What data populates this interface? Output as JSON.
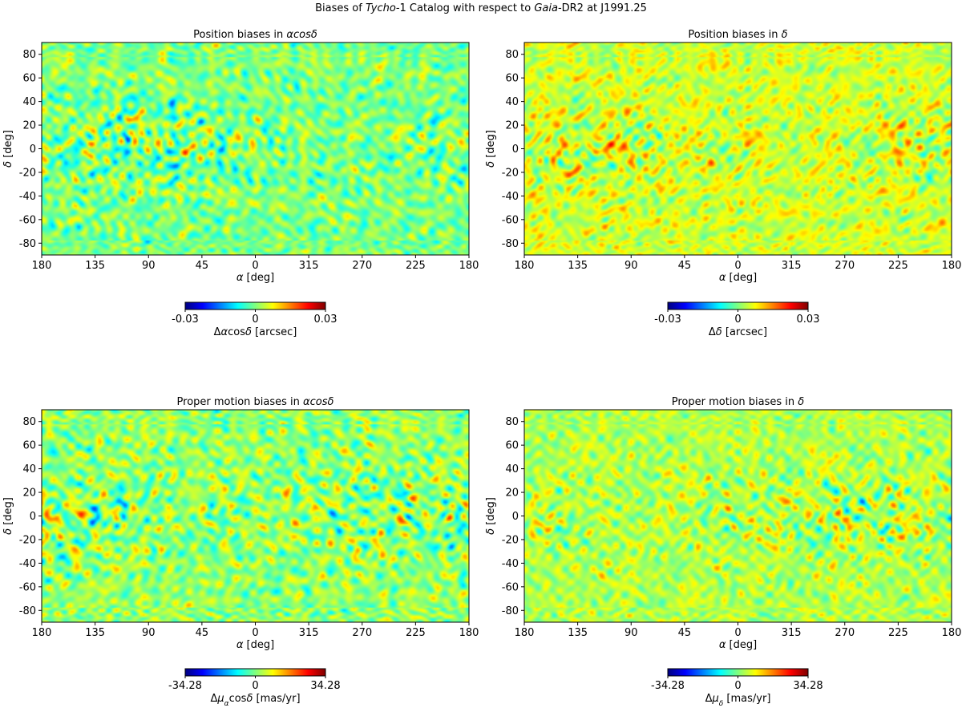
{
  "figure": {
    "title_parts": [
      {
        "t": "Biases of ",
        "i": false
      },
      {
        "t": "Tycho",
        "i": true
      },
      {
        "t": "-1 Catalog with respect to ",
        "i": false
      },
      {
        "t": "Gaia",
        "i": true
      },
      {
        "t": "-DR2 at J1991.25",
        "i": false
      }
    ]
  },
  "colormap": {
    "name": "jet",
    "stops": [
      "#00007f",
      "#0000ff",
      "#007fff",
      "#00ffff",
      "#7fff7f",
      "#ffff00",
      "#ff7f00",
      "#ff0000",
      "#7f0000"
    ]
  },
  "chart_data": [
    {
      "type": "heatmap",
      "title_parts": [
        {
          "t": "Position biases in ",
          "i": false
        },
        {
          "t": "αcosδ",
          "i": true
        }
      ],
      "xlabel_parts": [
        {
          "t": "α",
          "i": true
        },
        {
          "t": " [deg]",
          "i": false
        }
      ],
      "ylabel_parts": [
        {
          "t": "δ",
          "i": true
        },
        {
          "t": " [deg]",
          "i": false
        }
      ],
      "x_tick_labels": [
        "180",
        "135",
        "90",
        "45",
        "0",
        "315",
        "270",
        "225",
        "180"
      ],
      "y_tick_labels": [
        "80",
        "60",
        "40",
        "20",
        "0",
        "-20",
        "-40",
        "-60",
        "-80"
      ],
      "y_tick_values": [
        80,
        60,
        40,
        20,
        0,
        -20,
        -40,
        -60,
        -80
      ],
      "ylim": [
        -90,
        90
      ],
      "xlim": [
        180,
        -180
      ],
      "colorbar": {
        "vmin": -0.03,
        "vmax": 0.03,
        "tick_labels": [
          "-0.03",
          "0",
          "0.03"
        ],
        "label_parts": [
          {
            "t": "Δ",
            "i": false
          },
          {
            "t": "α",
            "i": true
          },
          {
            "t": "cos",
            "i": false
          },
          {
            "t": "δ",
            "i": true
          },
          {
            "t": " [arcsec]",
            "i": false
          }
        ]
      },
      "seed": 11,
      "warmth": 0.0,
      "spread": 0.95
    },
    {
      "type": "heatmap",
      "title_parts": [
        {
          "t": "Position biases in ",
          "i": false
        },
        {
          "t": "δ",
          "i": true
        }
      ],
      "xlabel_parts": [
        {
          "t": "α",
          "i": true
        },
        {
          "t": " [deg]",
          "i": false
        }
      ],
      "ylabel_parts": [
        {
          "t": "δ",
          "i": true
        },
        {
          "t": " [deg]",
          "i": false
        }
      ],
      "x_tick_labels": [
        "180",
        "135",
        "90",
        "45",
        "0",
        "315",
        "270",
        "225",
        "180"
      ],
      "y_tick_labels": [
        "80",
        "60",
        "40",
        "20",
        "0",
        "-20",
        "-40",
        "-60",
        "-80"
      ],
      "y_tick_values": [
        80,
        60,
        40,
        20,
        0,
        -20,
        -40,
        -60,
        -80
      ],
      "ylim": [
        -90,
        90
      ],
      "xlim": [
        180,
        -180
      ],
      "colorbar": {
        "vmin": -0.03,
        "vmax": 0.03,
        "tick_labels": [
          "-0.03",
          "0",
          "0.03"
        ],
        "label_parts": [
          {
            "t": "Δ",
            "i": false
          },
          {
            "t": "δ",
            "i": true
          },
          {
            "t": " [arcsec]",
            "i": false
          }
        ]
      },
      "seed": 23,
      "warmth": 0.08,
      "spread": 0.85
    },
    {
      "type": "heatmap",
      "title_parts": [
        {
          "t": "Proper motion biases in ",
          "i": false
        },
        {
          "t": "αcosδ",
          "i": true
        }
      ],
      "xlabel_parts": [
        {
          "t": "α",
          "i": true
        },
        {
          "t": " [deg]",
          "i": false
        }
      ],
      "ylabel_parts": [
        {
          "t": "δ",
          "i": true
        },
        {
          "t": " [deg]",
          "i": false
        }
      ],
      "x_tick_labels": [
        "180",
        "135",
        "90",
        "45",
        "0",
        "315",
        "270",
        "225",
        "180"
      ],
      "y_tick_labels": [
        "80",
        "60",
        "40",
        "20",
        "0",
        "-20",
        "-40",
        "-60",
        "-80"
      ],
      "y_tick_values": [
        80,
        60,
        40,
        20,
        0,
        -20,
        -40,
        -60,
        -80
      ],
      "ylim": [
        -90,
        90
      ],
      "xlim": [
        180,
        -180
      ],
      "colorbar": {
        "vmin": -34.28,
        "vmax": 34.28,
        "tick_labels": [
          "-34.28",
          "0",
          "34.28"
        ],
        "label_parts": [
          {
            "t": "Δ",
            "i": false
          },
          {
            "t": "μ",
            "i": true
          },
          {
            "t": "α",
            "i": true,
            "sub": true
          },
          {
            "t": "cos",
            "i": false
          },
          {
            "t": "δ",
            "i": true
          },
          {
            "t": " [mas/yr]",
            "i": false
          }
        ]
      },
      "seed": 37,
      "warmth": 0.02,
      "spread": 1.0
    },
    {
      "type": "heatmap",
      "title_parts": [
        {
          "t": "Proper motion biases in ",
          "i": false
        },
        {
          "t": "δ",
          "i": true
        }
      ],
      "xlabel_parts": [
        {
          "t": "α",
          "i": true
        },
        {
          "t": " [deg]",
          "i": false
        }
      ],
      "ylabel_parts": [
        {
          "t": "δ",
          "i": true
        },
        {
          "t": " [deg]",
          "i": false
        }
      ],
      "x_tick_labels": [
        "180",
        "135",
        "90",
        "45",
        "0",
        "315",
        "270",
        "225",
        "180"
      ],
      "y_tick_labels": [
        "80",
        "60",
        "40",
        "20",
        "0",
        "-20",
        "-40",
        "-60",
        "-80"
      ],
      "y_tick_values": [
        80,
        60,
        40,
        20,
        0,
        -20,
        -40,
        -60,
        -80
      ],
      "ylim": [
        -90,
        90
      ],
      "xlim": [
        180,
        -180
      ],
      "colorbar": {
        "vmin": -34.28,
        "vmax": 34.28,
        "tick_labels": [
          "-34.28",
          "0",
          "34.28"
        ],
        "label_parts": [
          {
            "t": "Δ",
            "i": false
          },
          {
            "t": "μ",
            "i": true
          },
          {
            "t": "δ",
            "i": true,
            "sub": true
          },
          {
            "t": " [mas/yr]",
            "i": false
          }
        ]
      },
      "seed": 53,
      "warmth": 0.05,
      "spread": 0.8
    }
  ]
}
